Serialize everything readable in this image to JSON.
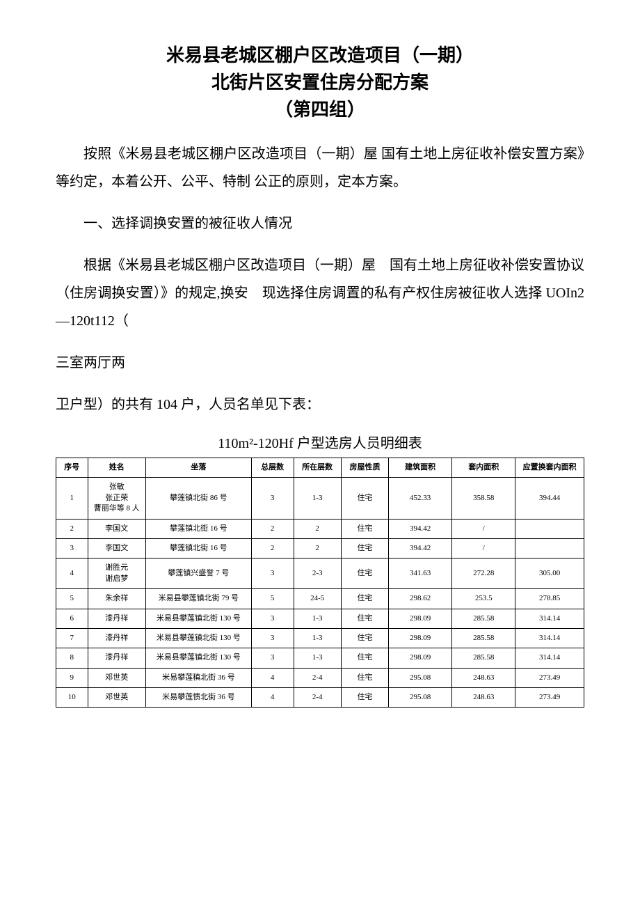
{
  "title": {
    "line1": "米易县老城区棚户区改造项目（一期）",
    "line2": "北街片区安置住房分配方案",
    "line3": "（第四组）"
  },
  "paragraphs": {
    "p1": "按照《米易县老城区棚户区改造项目（一期）屋 国有土地上房征收补偿安置方案》等约定，本着公开、公平、特制 公正的原则，定本方案。",
    "h1": "一、选择调换安置的被征收人情况",
    "p2": "根据《米易县老城区棚户区改造项目（一期）屋　国有土地上房征收补偿安置协议（住房调换安置）》的规定,换安　现选择住房调置的私有产权住房被征收人选择 UOIn2—120t112（",
    "p3": "三室两厅两",
    "p4": "卫户型）的共有 104 户，人员名单见下表："
  },
  "table": {
    "caption": "110m²-120Hf 户型选房人员明细表",
    "headers": [
      "序号",
      "姓名",
      "坐落",
      "总层数",
      "所在层数",
      "房屋性质",
      "建筑面积",
      "套内面积",
      "应置换套内面积"
    ],
    "rows": [
      [
        "1",
        "张敏\n张正荣\n曹丽华等 8 人",
        "攀莲镇北街 86 号",
        "3",
        "1-3",
        "住宅",
        "452.33",
        "358.58",
        "394.44"
      ],
      [
        "2",
        "李国文",
        "攀莲镇北街 16 号",
        "2",
        "2",
        "住宅",
        "394.42",
        "/",
        ""
      ],
      [
        "3",
        "李国文",
        "攀莲镇北街 16 号",
        "2",
        "2",
        "住宅",
        "394.42",
        "/",
        ""
      ],
      [
        "4",
        "谢胜元\n谢启梦",
        "攀莲镇兴盛誉 7 号",
        "3",
        "2-3",
        "住宅",
        "341.63",
        "272.28",
        "305.00"
      ],
      [
        "5",
        "朱余祥",
        "米易县攀莲镇北街 79 号",
        "5",
        "24-5",
        "住宅",
        "298.62",
        "253.5",
        "278.85"
      ],
      [
        "6",
        "漆丹祥",
        "米易县攀莲镇北街 130 号",
        "3",
        "1-3",
        "住宅",
        "298.09",
        "285.58",
        "314.14"
      ],
      [
        "7",
        "漆丹祥",
        "米易县攀莲镇北街 130 号",
        "3",
        "1-3",
        "住宅",
        "298.09",
        "285.58",
        "314.14"
      ],
      [
        "8",
        "漆丹祥",
        "米易县攀莲镇北街 130 号",
        "3",
        "1-3",
        "住宅",
        "298.09",
        "285.58",
        "314.14"
      ],
      [
        "9",
        "邓世英",
        "米易攀莲稹北街 36 号",
        "4",
        "2-4",
        "住宅",
        "295.08",
        "248.63",
        "273.49"
      ],
      [
        "10",
        "邓世英",
        "米易攀莲愦北街 36 号",
        "4",
        "2-4",
        "住宅",
        "295.08",
        "248.63",
        "273.49"
      ]
    ]
  }
}
